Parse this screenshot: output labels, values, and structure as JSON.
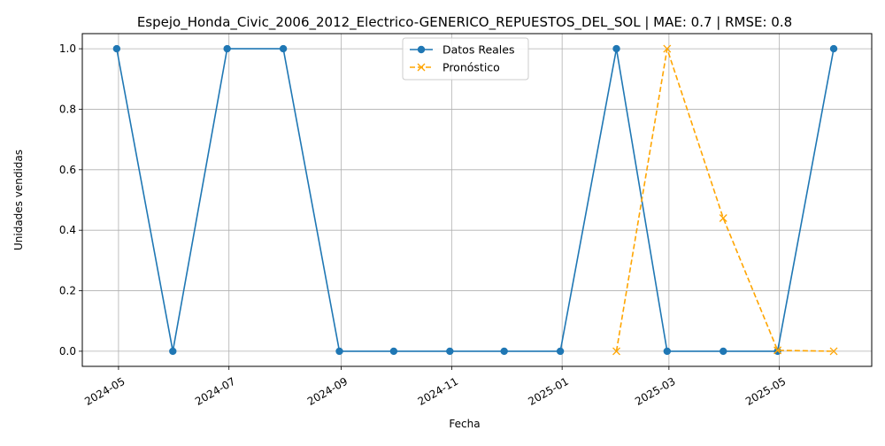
{
  "chart_data": {
    "type": "line",
    "title": "Espejo_Honda_Civic_2006_2012_Electrico-GENERICO_REPUESTOS_DEL_SOL | MAE: 0.7 | RMSE: 0.8",
    "xlabel": "Fecha",
    "ylabel": "Unidades vendidas",
    "x_axis": "date",
    "xlim": [
      "2024-04-11",
      "2025-06-21"
    ],
    "ylim": [
      -0.05,
      1.05
    ],
    "x_ticks": [
      "2024-05-01",
      "2024-07-01",
      "2024-09-01",
      "2024-11-01",
      "2025-01-01",
      "2025-03-01",
      "2025-05-01"
    ],
    "x_tick_labels": [
      "2024-05",
      "2024-07",
      "2024-09",
      "2024-11",
      "2025-01",
      "2025-03",
      "2025-05"
    ],
    "y_ticks": [
      0.0,
      0.2,
      0.4,
      0.6,
      0.8,
      1.0
    ],
    "y_tick_labels": [
      "0.0",
      "0.2",
      "0.4",
      "0.6",
      "0.8",
      "1.0"
    ],
    "grid": true,
    "legend_position": "top-center",
    "series": [
      {
        "name": "Datos Reales",
        "color": "#1f77b4",
        "line_style": "solid",
        "marker": "circle",
        "x": [
          "2024-04-30",
          "2024-05-31",
          "2024-06-30",
          "2024-07-31",
          "2024-08-31",
          "2024-09-30",
          "2024-10-31",
          "2024-11-30",
          "2024-12-31",
          "2025-01-31",
          "2025-02-28",
          "2025-03-31",
          "2025-04-30",
          "2025-05-31"
        ],
        "values": [
          1,
          0,
          1,
          1,
          0,
          0,
          0,
          0,
          0,
          1,
          0,
          0,
          0,
          1
        ]
      },
      {
        "name": "Pronóstico",
        "color": "#ffa500",
        "line_style": "dashed",
        "marker": "x",
        "x": [
          "2025-01-31",
          "2025-02-28",
          "2025-03-31",
          "2025-04-30",
          "2025-05-31"
        ],
        "values": [
          0.0,
          1.0,
          0.44,
          0.003,
          0.0
        ]
      }
    ]
  }
}
